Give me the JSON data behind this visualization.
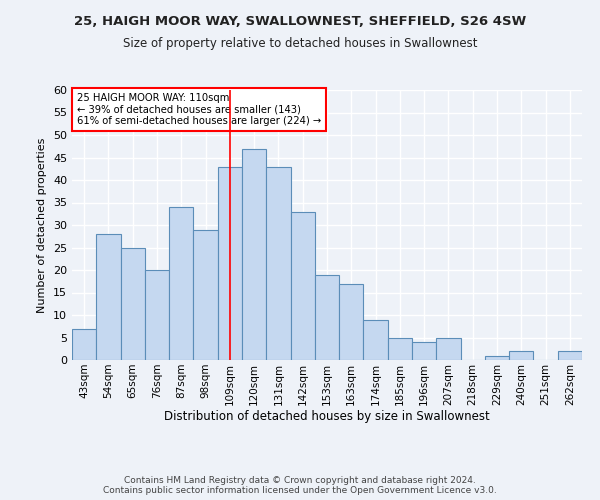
{
  "title_line1": "25, HAIGH MOOR WAY, SWALLOWNEST, SHEFFIELD, S26 4SW",
  "title_line2": "Size of property relative to detached houses in Swallownest",
  "xlabel": "Distribution of detached houses by size in Swallownest",
  "ylabel": "Number of detached properties",
  "categories": [
    "43sqm",
    "54sqm",
    "65sqm",
    "76sqm",
    "87sqm",
    "98sqm",
    "109sqm",
    "120sqm",
    "131sqm",
    "142sqm",
    "153sqm",
    "163sqm",
    "174sqm",
    "185sqm",
    "196sqm",
    "207sqm",
    "218sqm",
    "229sqm",
    "240sqm",
    "251sqm",
    "262sqm"
  ],
  "values": [
    7,
    28,
    25,
    20,
    34,
    29,
    43,
    47,
    43,
    33,
    19,
    17,
    9,
    5,
    4,
    5,
    0,
    1,
    2,
    0,
    2
  ],
  "bar_color": "#c5d8f0",
  "bar_edge_color": "#5b8db8",
  "ylim": [
    0,
    60
  ],
  "yticks": [
    0,
    5,
    10,
    15,
    20,
    25,
    30,
    35,
    40,
    45,
    50,
    55,
    60
  ],
  "property_bin_index": 6,
  "annotation_text_line1": "25 HAIGH MOOR WAY: 110sqm",
  "annotation_text_line2": "← 39% of detached houses are smaller (143)",
  "annotation_text_line3": "61% of semi-detached houses are larger (224) →",
  "vline_color": "red",
  "annotation_box_color": "white",
  "annotation_box_edgecolor": "red",
  "footer_line1": "Contains HM Land Registry data © Crown copyright and database right 2024.",
  "footer_line2": "Contains public sector information licensed under the Open Government Licence v3.0.",
  "background_color": "#eef2f8"
}
